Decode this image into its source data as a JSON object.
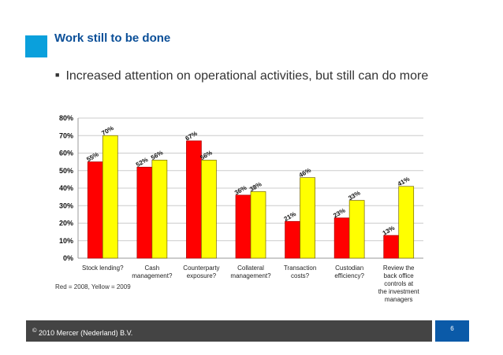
{
  "header": {
    "title": "Work still to be done"
  },
  "bullet": "Increased attention on operational activities, but still can do more",
  "legend_note": "Red = 2008, Yellow = 2009",
  "footer": {
    "copyright": "©",
    "text": "2010 Mercer (Nederland) B.V.",
    "page": "6"
  },
  "chart_data": {
    "type": "bar",
    "categories": [
      "Stock lending?",
      "Cash management?",
      "Counterparty exposure?",
      "Collateral management?",
      "Transaction costs?",
      "Custodian efficiency?",
      "Review the back office controls at the investment managers"
    ],
    "series": [
      {
        "values": [
          55,
          52,
          67,
          36,
          21,
          23,
          13
        ],
        "color": "#ff0000"
      },
      {
        "values": [
          70,
          56,
          56,
          38,
          46,
          33,
          41
        ],
        "color": "#ffff00"
      }
    ],
    "data_labels": [
      [
        "55%",
        "52%",
        "67%",
        "36%",
        "21%",
        "23%",
        "13%"
      ],
      [
        "70%",
        "56%",
        "56%",
        "38%",
        "46%",
        "33%",
        "41%"
      ]
    ],
    "yticks": [
      "0%",
      "10%",
      "20%",
      "30%",
      "40%",
      "50%",
      "60%",
      "70%",
      "80%"
    ],
    "ylim": [
      0,
      80
    ],
    "grid": true,
    "xlabel": "",
    "ylabel": ""
  }
}
